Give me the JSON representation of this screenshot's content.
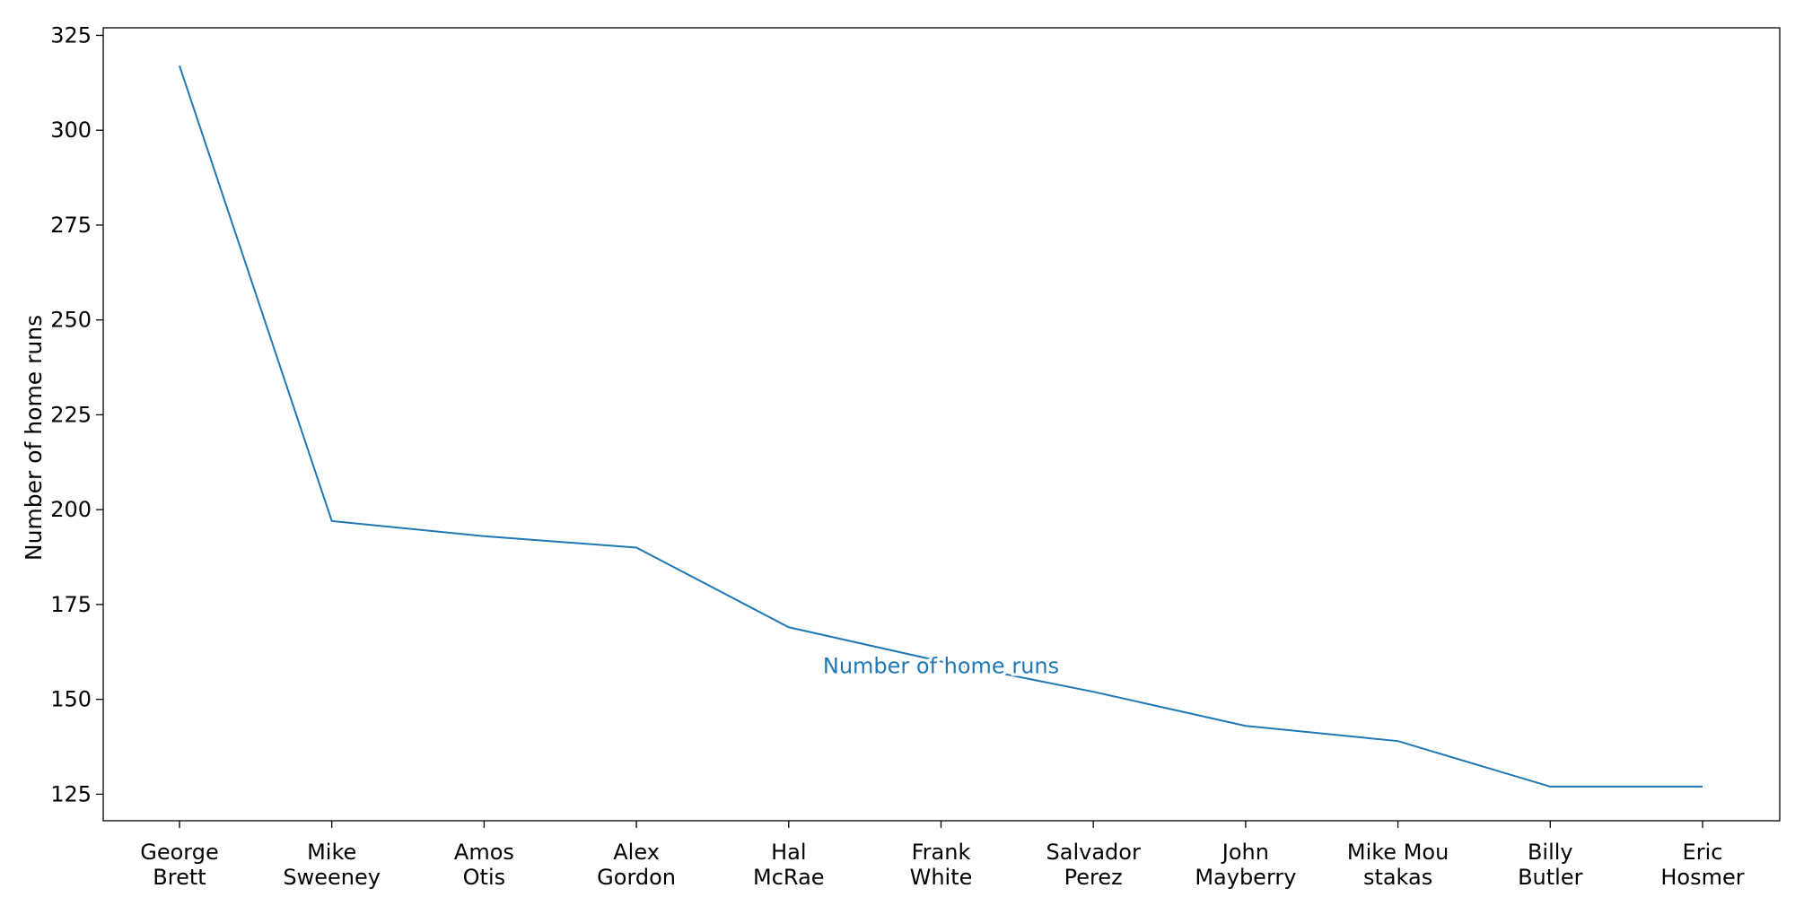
{
  "chart_data": {
    "type": "line",
    "categories": [
      [
        "George",
        "Brett"
      ],
      [
        "Mike",
        "Sweeney"
      ],
      [
        "Amos",
        "Otis"
      ],
      [
        "Alex",
        "Gordon"
      ],
      [
        "Hal",
        "McRae"
      ],
      [
        "Frank",
        "White"
      ],
      [
        "Salvador",
        "Perez"
      ],
      [
        "John",
        "Mayberry"
      ],
      [
        "Mike Mou",
        "stakas"
      ],
      [
        "Billy",
        "Butler"
      ],
      [
        "Eric",
        "Hosmer"
      ]
    ],
    "series": [
      {
        "name": "Number of home runs",
        "values": [
          317,
          197,
          193,
          190,
          169,
          160,
          152,
          143,
          139,
          127,
          127
        ],
        "color": "#1f77b4"
      }
    ],
    "xlabel": "",
    "ylabel": "Number of home runs",
    "ylim": [
      118,
      327
    ],
    "yticks": [
      125,
      150,
      175,
      200,
      225,
      250,
      275,
      300,
      325
    ],
    "series_label_at_category": 5,
    "series_label_value": 159,
    "grid": false,
    "legend": "none"
  }
}
